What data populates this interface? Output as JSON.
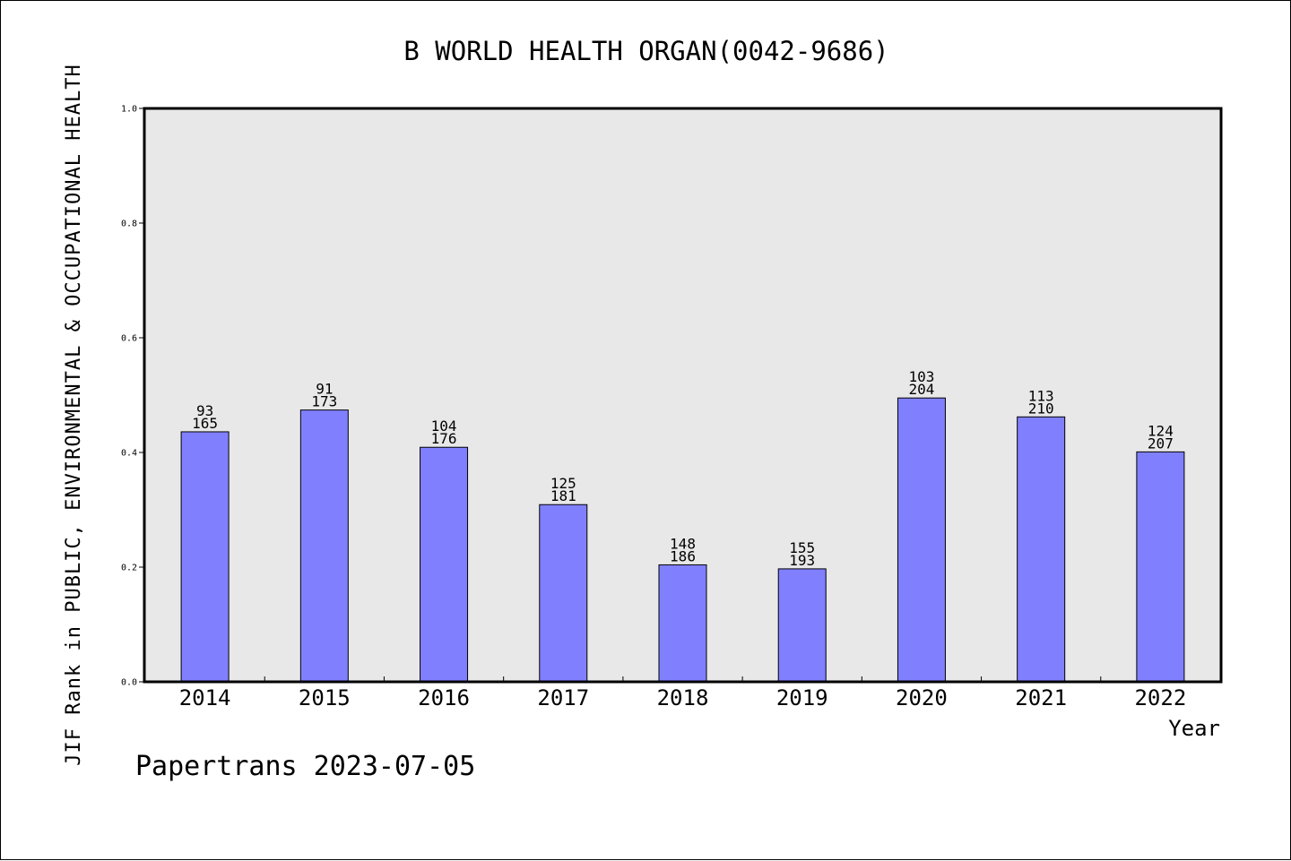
{
  "chart_data": {
    "type": "bar",
    "title": "B WORLD HEALTH ORGAN(0042-9686)",
    "xlabel": "Year",
    "ylabel": "JIF Rank in PUBLIC, ENVIRONMENTAL & OCCUPATIONAL HEALTH",
    "ylim": [
      0,
      1.0
    ],
    "yticks": [
      "0.0",
      "0.2",
      "0.4",
      "0.6",
      "0.8",
      "1.0"
    ],
    "grid": false,
    "categories": [
      "2014",
      "2015",
      "2016",
      "2017",
      "2018",
      "2019",
      "2020",
      "2021",
      "2022"
    ],
    "values": [
      0.436,
      0.474,
      0.409,
      0.309,
      0.204,
      0.197,
      0.495,
      0.462,
      0.401
    ],
    "ranks": [
      "93",
      "91",
      "104",
      "125",
      "148",
      "155",
      "103",
      "113",
      "124"
    ],
    "totals": [
      "165",
      "173",
      "176",
      "181",
      "186",
      "193",
      "204",
      "210",
      "207"
    ],
    "colors": {
      "bar": "#8080ff",
      "plot_bg": "#e8e8e8",
      "axis": "#000000"
    }
  },
  "footer": "Papertrans 2023-07-05"
}
